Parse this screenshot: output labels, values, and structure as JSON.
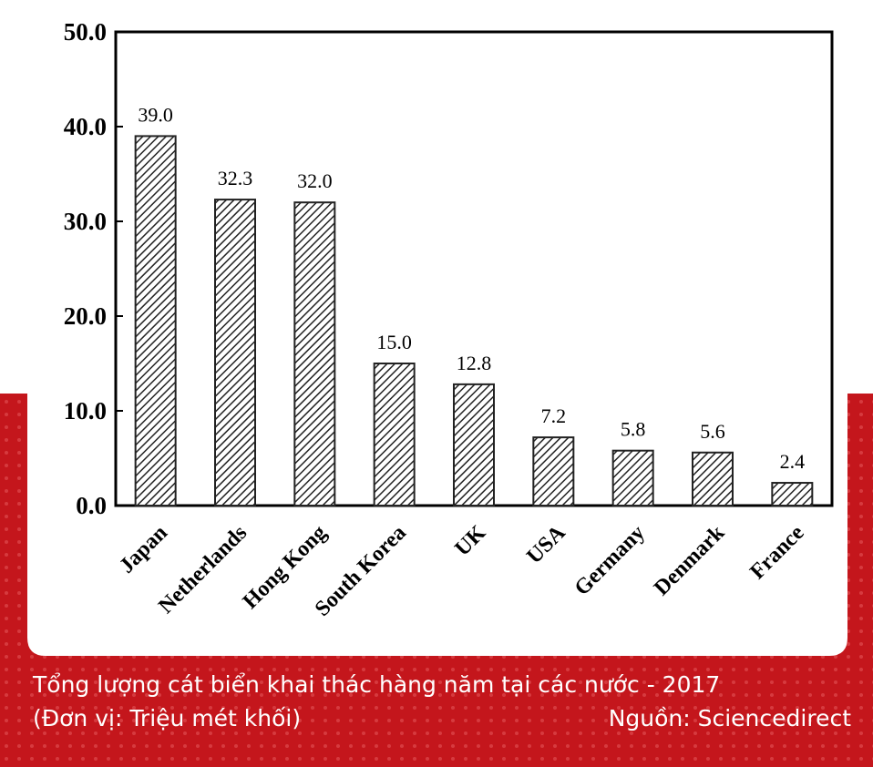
{
  "chart_data": {
    "type": "bar",
    "title": "Tổng lượng cát biển khai thác hàng năm tại các nước - 2017",
    "subtitle": "(Đơn vị: Triệu mét khối)",
    "source": "Nguồn: Sciencedirect",
    "categories": [
      "Japan",
      "Netherlands",
      "Hong Kong",
      "South Korea",
      "UK",
      "USA",
      "Germany",
      "Denmark",
      "France"
    ],
    "values": [
      39.0,
      32.3,
      32.0,
      15.0,
      12.8,
      7.2,
      5.8,
      5.6,
      2.4
    ],
    "value_labels": [
      "39.0",
      "32.3",
      "32.0",
      "15.0",
      "12.8",
      "7.2",
      "5.8",
      "5.6",
      "2.4"
    ],
    "color": "#222222",
    "ylim": [
      0,
      50
    ],
    "yticks": [
      {
        "value": 0,
        "label": "0.0"
      },
      {
        "value": 10,
        "label": "10.0"
      },
      {
        "value": 20,
        "label": "20.0"
      },
      {
        "value": 30,
        "label": "30.0"
      },
      {
        "value": 40,
        "label": "40.0"
      },
      {
        "value": 50,
        "label": "50.0"
      }
    ],
    "grid": false
  }
}
